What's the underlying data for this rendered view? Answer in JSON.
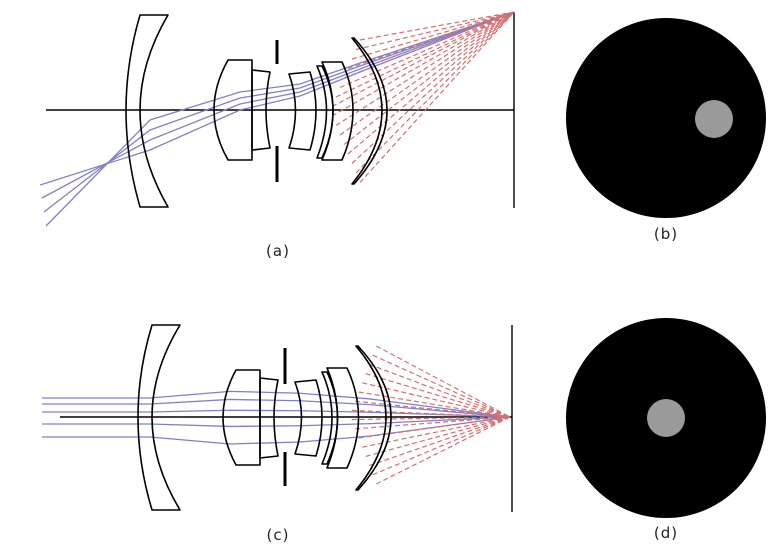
{
  "panels": [
    {
      "caption": "(a)",
      "kind": "lens-layout",
      "field": "off-axis"
    },
    {
      "caption": "(b)",
      "kind": "spot-view",
      "field": "off-axis"
    },
    {
      "caption": "(c)",
      "kind": "lens-layout",
      "field": "on-axis"
    },
    {
      "caption": "(d)",
      "kind": "spot-view",
      "field": "on-axis"
    }
  ],
  "colors": {
    "ray_color": "#8080c8",
    "reflected_ray_color": "#d47070",
    "lens_color": "#000000",
    "disc_color": "#000000",
    "spot_color": "#9a9a9a"
  }
}
